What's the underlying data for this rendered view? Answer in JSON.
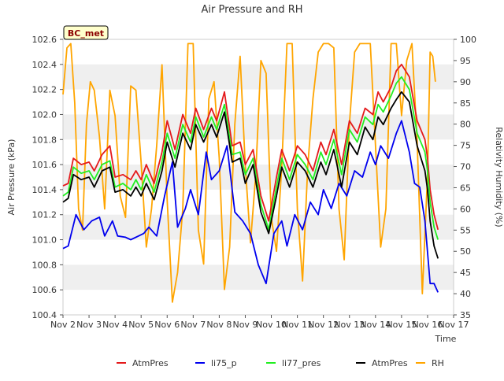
{
  "chart_data": {
    "type": "line",
    "title": "Air Pressure and RH",
    "xlabel": "Time",
    "ylabel": "Air Pressure (kPa)",
    "y2label": "Relativity Humidity (%)",
    "site_label": "BC_met",
    "x_ticks": [
      "Nov 2",
      "Nov 3",
      "Nov 4",
      "Nov 5",
      "Nov 6",
      "Nov 7",
      "Nov 8",
      "Nov 9",
      "Nov 10",
      "Nov 11",
      "Nov 12",
      "Nov 13",
      "Nov 14",
      "Nov 15",
      "Nov 16",
      "Nov 17"
    ],
    "xlim": [
      0,
      15
    ],
    "ylim": [
      100.4,
      102.6
    ],
    "y_ticks": [
      "100.4",
      "100.6",
      "100.8",
      "101.0",
      "101.2",
      "101.4",
      "101.6",
      "101.8",
      "102.0",
      "102.2",
      "102.4",
      "102.6"
    ],
    "y2lim": [
      35,
      100
    ],
    "y2_ticks": [
      "35",
      "40",
      "45",
      "50",
      "55",
      "60",
      "65",
      "70",
      "75",
      "80",
      "85",
      "90",
      "95",
      "100"
    ],
    "grid": "horizontal bands",
    "legend_position": "bottom",
    "series": [
      {
        "name": "AtmPres",
        "axis": "left",
        "color": "#e41a1c",
        "x": [
          0,
          0.2,
          0.4,
          0.7,
          1.0,
          1.2,
          1.5,
          1.8,
          2.0,
          2.3,
          2.6,
          2.8,
          3.0,
          3.2,
          3.5,
          3.8,
          4.0,
          4.3,
          4.6,
          4.9,
          5.1,
          5.4,
          5.7,
          5.9,
          6.2,
          6.5,
          6.8,
          7.0,
          7.3,
          7.6,
          7.9,
          8.2,
          8.4,
          8.7,
          9.0,
          9.3,
          9.6,
          9.9,
          10.1,
          10.4,
          10.7,
          11.0,
          11.3,
          11.6,
          11.9,
          12.1,
          12.3,
          12.6,
          12.8,
          13.0,
          13.3,
          13.6,
          13.9,
          14.0,
          14.1,
          14.25,
          14.4
        ],
        "values": [
          101.43,
          101.45,
          101.65,
          101.6,
          101.62,
          101.55,
          101.68,
          101.75,
          101.5,
          101.52,
          101.48,
          101.55,
          101.48,
          101.6,
          101.45,
          101.7,
          101.95,
          101.72,
          102.0,
          101.85,
          102.05,
          101.88,
          102.05,
          101.95,
          102.18,
          101.75,
          101.78,
          101.6,
          101.72,
          101.35,
          101.15,
          101.5,
          101.72,
          101.55,
          101.75,
          101.68,
          101.55,
          101.78,
          101.68,
          101.88,
          101.6,
          101.95,
          101.85,
          102.05,
          102.0,
          102.18,
          102.1,
          102.22,
          102.35,
          102.4,
          102.3,
          101.95,
          101.8,
          101.65,
          101.4,
          101.2,
          101.08
        ]
      },
      {
        "name": "li75_p",
        "axis": "left",
        "color": "#0000ee",
        "x": [
          0,
          0.2,
          0.5,
          0.8,
          1.1,
          1.4,
          1.6,
          1.9,
          2.1,
          2.4,
          2.6,
          2.9,
          3.1,
          3.3,
          3.6,
          3.9,
          4.2,
          4.4,
          4.7,
          4.9,
          5.2,
          5.5,
          5.7,
          6.0,
          6.3,
          6.6,
          6.9,
          7.2,
          7.5,
          7.8,
          8.1,
          8.4,
          8.6,
          8.9,
          9.2,
          9.5,
          9.8,
          10.0,
          10.3,
          10.6,
          10.9,
          11.2,
          11.5,
          11.8,
          12.0,
          12.2,
          12.5,
          12.8,
          13.0,
          13.3,
          13.5,
          13.7,
          13.9,
          14.1,
          14.25,
          14.4
        ],
        "values": [
          100.93,
          100.95,
          101.2,
          101.08,
          101.15,
          101.18,
          101.03,
          101.15,
          101.03,
          101.02,
          101.0,
          101.03,
          101.05,
          101.1,
          101.03,
          101.35,
          101.62,
          101.1,
          101.25,
          101.4,
          101.2,
          101.7,
          101.48,
          101.55,
          101.75,
          101.22,
          101.15,
          101.05,
          100.8,
          100.65,
          101.05,
          101.15,
          100.95,
          101.2,
          101.08,
          101.3,
          101.2,
          101.4,
          101.25,
          101.45,
          101.35,
          101.55,
          101.5,
          101.7,
          101.6,
          101.75,
          101.65,
          101.85,
          101.95,
          101.7,
          101.45,
          101.42,
          101.15,
          100.65,
          100.65,
          100.58
        ]
      },
      {
        "name": "li77_pres",
        "axis": "left",
        "color": "#22ee22",
        "x": [
          0,
          0.2,
          0.4,
          0.7,
          1.0,
          1.2,
          1.5,
          1.8,
          2.0,
          2.3,
          2.6,
          2.8,
          3.0,
          3.2,
          3.5,
          3.8,
          4.0,
          4.3,
          4.6,
          4.9,
          5.1,
          5.4,
          5.7,
          5.9,
          6.2,
          6.5,
          6.8,
          7.0,
          7.3,
          7.6,
          7.9,
          8.2,
          8.4,
          8.7,
          9.0,
          9.3,
          9.6,
          9.9,
          10.1,
          10.4,
          10.7,
          11.0,
          11.3,
          11.6,
          11.9,
          12.1,
          12.3,
          12.6,
          12.8,
          13.0,
          13.3,
          13.6,
          13.9,
          14.0,
          14.1,
          14.25,
          14.4
        ],
        "values": [
          101.35,
          101.38,
          101.58,
          101.53,
          101.55,
          101.48,
          101.6,
          101.63,
          101.42,
          101.45,
          101.4,
          101.48,
          101.4,
          101.52,
          101.38,
          101.62,
          101.85,
          101.65,
          101.92,
          101.78,
          101.98,
          101.82,
          101.98,
          101.88,
          102.08,
          101.68,
          101.7,
          101.52,
          101.65,
          101.28,
          101.08,
          101.42,
          101.65,
          101.48,
          101.68,
          101.6,
          101.48,
          101.7,
          101.6,
          101.8,
          101.52,
          101.88,
          101.78,
          101.98,
          101.92,
          102.08,
          102.02,
          102.15,
          102.25,
          102.3,
          102.2,
          101.85,
          101.7,
          101.55,
          101.3,
          101.1,
          101.0
        ]
      },
      {
        "name": "AtmPres",
        "axis": "left",
        "color": "#000000",
        "x": [
          0,
          0.2,
          0.4,
          0.7,
          1.0,
          1.2,
          1.5,
          1.8,
          2.0,
          2.3,
          2.6,
          2.8,
          3.0,
          3.2,
          3.5,
          3.8,
          4.0,
          4.3,
          4.6,
          4.9,
          5.1,
          5.4,
          5.7,
          5.9,
          6.2,
          6.5,
          6.8,
          7.0,
          7.3,
          7.6,
          7.9,
          8.2,
          8.4,
          8.7,
          9.0,
          9.3,
          9.6,
          9.9,
          10.1,
          10.4,
          10.7,
          11.0,
          11.3,
          11.6,
          11.9,
          12.1,
          12.3,
          12.6,
          12.8,
          13.0,
          13.3,
          13.6,
          13.9,
          14.0,
          14.1,
          14.25,
          14.4
        ],
        "values": [
          101.3,
          101.33,
          101.52,
          101.48,
          101.5,
          101.42,
          101.55,
          101.58,
          101.38,
          101.4,
          101.35,
          101.42,
          101.35,
          101.45,
          101.32,
          101.55,
          101.78,
          101.58,
          101.85,
          101.72,
          101.92,
          101.78,
          101.92,
          101.82,
          102.02,
          101.62,
          101.65,
          101.45,
          101.6,
          101.22,
          101.05,
          101.35,
          101.58,
          101.42,
          101.62,
          101.55,
          101.42,
          101.62,
          101.52,
          101.72,
          101.42,
          101.78,
          101.68,
          101.9,
          101.8,
          101.98,
          101.92,
          102.05,
          102.12,
          102.18,
          102.1,
          101.75,
          101.55,
          101.4,
          101.15,
          100.95,
          100.85
        ]
      },
      {
        "name": "RH",
        "axis": "right",
        "color": "#ffa500",
        "x": [
          0,
          0.15,
          0.3,
          0.45,
          0.6,
          0.75,
          0.9,
          1.05,
          1.2,
          1.4,
          1.6,
          1.8,
          2.0,
          2.2,
          2.4,
          2.6,
          2.8,
          3.0,
          3.2,
          3.4,
          3.6,
          3.8,
          4.0,
          4.2,
          4.4,
          4.6,
          4.8,
          5.0,
          5.2,
          5.4,
          5.6,
          5.8,
          6.0,
          6.2,
          6.4,
          6.6,
          6.8,
          7.0,
          7.2,
          7.4,
          7.6,
          7.8,
          8.0,
          8.2,
          8.4,
          8.6,
          8.8,
          9.0,
          9.2,
          9.4,
          9.6,
          9.8,
          10.0,
          10.2,
          10.4,
          10.6,
          10.8,
          11.0,
          11.2,
          11.4,
          11.6,
          11.8,
          12.0,
          12.2,
          12.4,
          12.6,
          12.8,
          13.0,
          13.2,
          13.4,
          13.6,
          13.8,
          14.0,
          14.1,
          14.2,
          14.3
        ],
        "values": [
          87,
          98,
          99,
          85,
          60,
          55,
          80,
          90,
          88,
          77,
          60,
          88,
          82,
          63,
          58,
          89,
          88,
          71,
          51,
          60,
          75,
          94,
          62,
          38,
          45,
          60,
          99,
          99,
          55,
          47,
          86,
          90,
          72,
          41,
          51,
          80,
          96,
          70,
          52,
          68,
          95,
          92,
          58,
          50,
          70,
          99,
          99,
          60,
          43,
          70,
          86,
          97,
          99,
          99,
          98,
          60,
          48,
          80,
          97,
          99,
          99,
          99,
          75,
          51,
          60,
          99,
          99,
          82,
          95,
          99,
          76,
          40,
          68,
          97,
          96,
          90
        ]
      }
    ]
  },
  "legend": [
    {
      "label": "AtmPres",
      "color": "#e41a1c"
    },
    {
      "label": "li75_p",
      "color": "#0000ee"
    },
    {
      "label": "li77_pres",
      "color": "#22ee22"
    },
    {
      "label": "AtmPres",
      "color": "#000000"
    },
    {
      "label": "RH",
      "color": "#ffa500"
    }
  ]
}
